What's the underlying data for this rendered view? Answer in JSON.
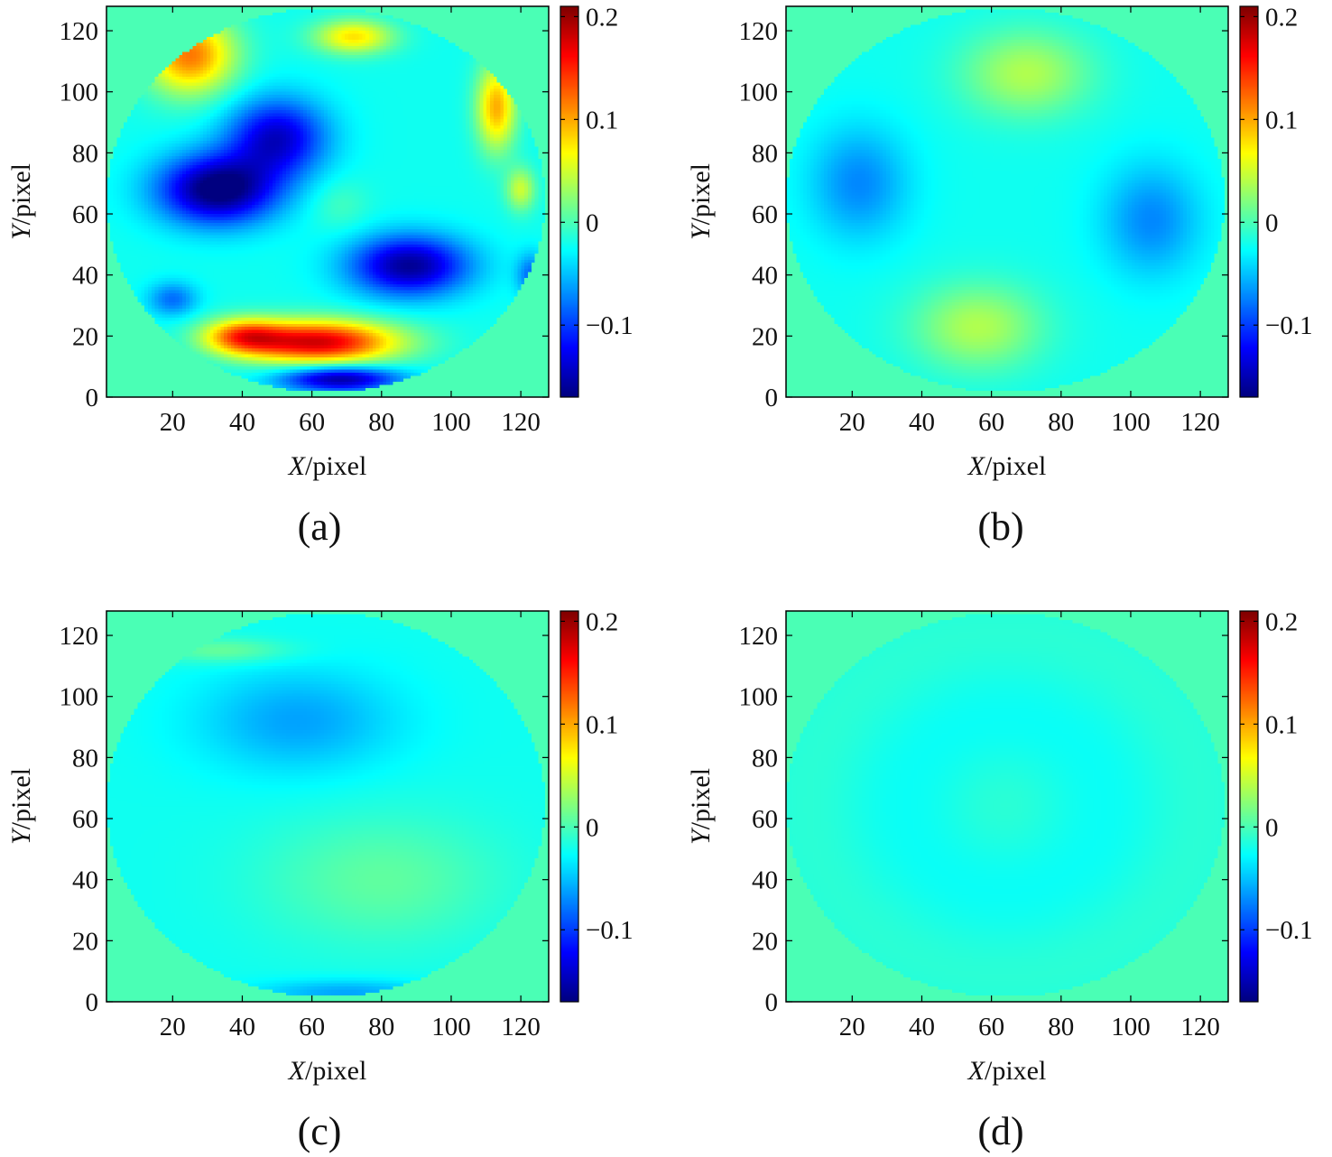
{
  "figure": {
    "panel_labels": [
      "(a)",
      "(b)",
      "(c)",
      "(d)"
    ]
  },
  "chart_data": [
    {
      "type": "heatmap",
      "panel": "(a)",
      "xlabel": {
        "var": "X",
        "unit": "/pixel"
      },
      "ylabel": {
        "var": "Y",
        "unit": "/pixel"
      },
      "xlim": [
        1,
        128
      ],
      "ylim": [
        0,
        128
      ],
      "xticks": [
        20,
        40,
        60,
        80,
        100,
        120
      ],
      "yticks": [
        0,
        20,
        40,
        60,
        80,
        100,
        120
      ],
      "aperture": {
        "center": [
          64,
          64.5
        ],
        "radius": 63
      },
      "background_value": 0,
      "colorbar": {
        "range": [
          -0.17,
          0.21
        ],
        "ticks": [
          0.2,
          0.1,
          0,
          -0.1
        ],
        "tick_labels": [
          "0.2",
          "0.1",
          "0",
          "−0.1"
        ],
        "colormap": "jet"
      },
      "features": [
        {
          "x": 33,
          "y": 68,
          "value": -0.16,
          "sx": 12,
          "sy": 8
        },
        {
          "x": 50,
          "y": 85,
          "value": -0.12,
          "sx": 10,
          "sy": 9
        },
        {
          "x": 88,
          "y": 43,
          "value": -0.14,
          "sx": 12,
          "sy": 7
        },
        {
          "x": 20,
          "y": 32,
          "value": -0.06,
          "sx": 5,
          "sy": 4
        },
        {
          "x": 123,
          "y": 40,
          "value": -0.06,
          "sx": 3,
          "sy": 5
        },
        {
          "x": 68,
          "y": 6,
          "value": -0.14,
          "sx": 12,
          "sy": 3
        },
        {
          "x": 62,
          "y": 18,
          "value": 0.2,
          "sx": 16,
          "sy": 5
        },
        {
          "x": 40,
          "y": 20,
          "value": 0.12,
          "sx": 8,
          "sy": 4
        },
        {
          "x": 25,
          "y": 112,
          "value": 0.14,
          "sx": 9,
          "sy": 9
        },
        {
          "x": 113,
          "y": 95,
          "value": 0.12,
          "sx": 4,
          "sy": 10
        },
        {
          "x": 72,
          "y": 118,
          "value": 0.1,
          "sx": 8,
          "sy": 4
        },
        {
          "x": 120,
          "y": 68,
          "value": 0.07,
          "sx": 3,
          "sy": 5
        },
        {
          "x": 68,
          "y": 63,
          "value": 0.02,
          "sx": 6,
          "sy": 6
        }
      ]
    },
    {
      "type": "heatmap",
      "panel": "(b)",
      "xlabel": {
        "var": "X",
        "unit": "/pixel"
      },
      "ylabel": {
        "var": "Y",
        "unit": "/pixel"
      },
      "xlim": [
        1,
        128
      ],
      "ylim": [
        0,
        128
      ],
      "xticks": [
        20,
        40,
        60,
        80,
        100,
        120
      ],
      "yticks": [
        0,
        20,
        40,
        60,
        80,
        100,
        120
      ],
      "aperture": {
        "center": [
          64,
          64.5
        ],
        "radius": 63
      },
      "background_value": 0,
      "colorbar": {
        "range": [
          -0.17,
          0.21
        ],
        "ticks": [
          0.2,
          0.1,
          0,
          -0.1
        ],
        "tick_labels": [
          "0.2",
          "0.1",
          "0",
          "−0.1"
        ],
        "colormap": "jet"
      },
      "features": [
        {
          "x": 70,
          "y": 106,
          "value": 0.06,
          "sx": 13,
          "sy": 10
        },
        {
          "x": 56,
          "y": 23,
          "value": 0.06,
          "sx": 13,
          "sy": 10
        },
        {
          "x": 22,
          "y": 70,
          "value": -0.05,
          "sx": 10,
          "sy": 13
        },
        {
          "x": 106,
          "y": 58,
          "value": -0.05,
          "sx": 10,
          "sy": 13
        }
      ]
    },
    {
      "type": "heatmap",
      "panel": "(c)",
      "xlabel": {
        "var": "X",
        "unit": "/pixel"
      },
      "ylabel": {
        "var": "Y",
        "unit": "/pixel"
      },
      "xlim": [
        1,
        128
      ],
      "ylim": [
        0,
        128
      ],
      "xticks": [
        20,
        40,
        60,
        80,
        100,
        120
      ],
      "yticks": [
        0,
        20,
        40,
        60,
        80,
        100,
        120
      ],
      "aperture": {
        "center": [
          64,
          64.5
        ],
        "radius": 63
      },
      "background_value": 0,
      "colorbar": {
        "range": [
          -0.17,
          0.21
        ],
        "ticks": [
          0.2,
          0.1,
          0,
          -0.1
        ],
        "tick_labels": [
          "0.2",
          "0.1",
          "0",
          "−0.1"
        ],
        "colormap": "jet"
      },
      "features": [
        {
          "x": 56,
          "y": 92,
          "value": -0.04,
          "sx": 20,
          "sy": 12
        },
        {
          "x": 80,
          "y": 40,
          "value": 0.03,
          "sx": 24,
          "sy": 15
        },
        {
          "x": 35,
          "y": 115,
          "value": 0.035,
          "sx": 14,
          "sy": 3
        },
        {
          "x": 70,
          "y": 3,
          "value": -0.04,
          "sx": 18,
          "sy": 3
        }
      ]
    },
    {
      "type": "heatmap",
      "panel": "(d)",
      "xlabel": {
        "var": "X",
        "unit": "/pixel"
      },
      "ylabel": {
        "var": "Y",
        "unit": "/pixel"
      },
      "xlim": [
        1,
        128
      ],
      "ylim": [
        0,
        128
      ],
      "xticks": [
        20,
        40,
        60,
        80,
        100,
        120
      ],
      "yticks": [
        0,
        20,
        40,
        60,
        80,
        100,
        120
      ],
      "aperture": {
        "center": [
          64,
          64.5
        ],
        "radius": 63
      },
      "background_value": 0,
      "colorbar": {
        "range": [
          -0.17,
          0.21
        ],
        "ticks": [
          0.2,
          0.1,
          0,
          -0.1
        ],
        "tick_labels": [
          "0.2",
          "0.1",
          "0",
          "−0.1"
        ],
        "colormap": "jet"
      },
      "pattern": "concentric rings",
      "features": [
        {
          "x": 64,
          "y": 64,
          "value": -0.015,
          "sx": 12,
          "sy": 12
        }
      ]
    }
  ]
}
